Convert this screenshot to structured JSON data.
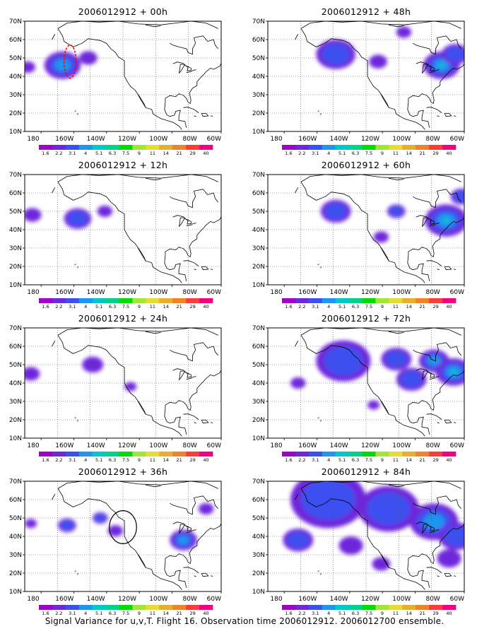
{
  "caption": "Signal Variance for u,v,T. Flight 16. Observation time 2006012912. 2006012700 ensemble.",
  "colorbar": {
    "labels": [
      "1.6",
      "2.2",
      "3.1",
      "4",
      "5.1",
      "6.3",
      "7.5",
      "9",
      "11",
      "14",
      "21",
      "29",
      "40"
    ],
    "colors": [
      "#a000c8",
      "#6e28dc",
      "#3c50f0",
      "#1e96f0",
      "#00c8c8",
      "#00d28c",
      "#00dc00",
      "#a0e632",
      "#e6dc32",
      "#e6af2d",
      "#f08228",
      "#fa3c3c",
      "#f00082"
    ]
  },
  "axes": {
    "xticks": [
      "180",
      "160W",
      "140W",
      "120W",
      "100W",
      "80W",
      "60W"
    ],
    "yticks": [
      "10N",
      "20N",
      "30N",
      "40N",
      "50N",
      "60N",
      "70N"
    ]
  },
  "chart_data": [
    {
      "type": "heatmap",
      "title": "2006012912 + 00h",
      "lon_range": [
        -190,
        -60
      ],
      "lat_range": [
        10,
        70
      ],
      "blobs": [
        {
          "lon": -165,
          "lat": 46,
          "r": 12,
          "level": 3
        },
        {
          "lon": -188,
          "lat": 45,
          "r": 5,
          "level": 1
        },
        {
          "lon": -148,
          "lat": 50,
          "r": 6,
          "level": 1
        }
      ],
      "overlays": [
        {
          "kind": "dashed-ellipse",
          "color": "#ff0000",
          "lon": -160,
          "lat": 48,
          "rx": 4,
          "ry": 9
        }
      ]
    },
    {
      "type": "heatmap",
      "title": "2006012912 + 48h",
      "lon_range": [
        -190,
        -60
      ],
      "lat_range": [
        10,
        70
      ],
      "blobs": [
        {
          "lon": -145,
          "lat": 52,
          "r": 13,
          "level": 2
        },
        {
          "lon": -117,
          "lat": 48,
          "r": 6,
          "level": 1
        },
        {
          "lon": -75,
          "lat": 46,
          "r": 12,
          "level": 4
        },
        {
          "lon": -66,
          "lat": 52,
          "r": 9,
          "level": 2
        },
        {
          "lon": -100,
          "lat": 64,
          "r": 5,
          "level": 1
        }
      ],
      "overlays": []
    },
    {
      "type": "heatmap",
      "title": "2006012912 + 12h",
      "lon_range": [
        -190,
        -60
      ],
      "lat_range": [
        10,
        70
      ],
      "blobs": [
        {
          "lon": -185,
          "lat": 48,
          "r": 6,
          "level": 1
        },
        {
          "lon": -155,
          "lat": 46,
          "r": 9,
          "level": 2
        },
        {
          "lon": -137,
          "lat": 50,
          "r": 5,
          "level": 1
        }
      ],
      "overlays": []
    },
    {
      "type": "heatmap",
      "title": "2006012912 + 60h",
      "lon_range": [
        -190,
        -60
      ],
      "lat_range": [
        10,
        70
      ],
      "blobs": [
        {
          "lon": -145,
          "lat": 50,
          "r": 10,
          "level": 2
        },
        {
          "lon": -105,
          "lat": 50,
          "r": 6,
          "level": 2
        },
        {
          "lon": -115,
          "lat": 36,
          "r": 5,
          "level": 1
        },
        {
          "lon": -72,
          "lat": 45,
          "r": 14,
          "level": 4
        },
        {
          "lon": -62,
          "lat": 58,
          "r": 7,
          "level": 2
        }
      ],
      "overlays": []
    },
    {
      "type": "heatmap",
      "title": "2006012912 + 24h",
      "lon_range": [
        -190,
        -60
      ],
      "lat_range": [
        10,
        70
      ],
      "blobs": [
        {
          "lon": -186,
          "lat": 45,
          "r": 6,
          "level": 1
        },
        {
          "lon": -145,
          "lat": 50,
          "r": 7,
          "level": 1
        },
        {
          "lon": -120,
          "lat": 38,
          "r": 4,
          "level": 1
        }
      ],
      "overlays": []
    },
    {
      "type": "heatmap",
      "title": "2006012912 + 72h",
      "lon_range": [
        -190,
        -60
      ],
      "lat_range": [
        10,
        70
      ],
      "blobs": [
        {
          "lon": -140,
          "lat": 52,
          "r": 18,
          "level": 2
        },
        {
          "lon": -105,
          "lat": 53,
          "r": 10,
          "level": 2
        },
        {
          "lon": -80,
          "lat": 52,
          "r": 10,
          "level": 3
        },
        {
          "lon": -67,
          "lat": 46,
          "r": 12,
          "level": 4
        },
        {
          "lon": -95,
          "lat": 42,
          "r": 10,
          "level": 2
        },
        {
          "lon": -170,
          "lat": 40,
          "r": 5,
          "level": 1
        },
        {
          "lon": -120,
          "lat": 28,
          "r": 4,
          "level": 1
        }
      ],
      "overlays": []
    },
    {
      "type": "heatmap",
      "title": "2006012912 + 36h",
      "lon_range": [
        -190,
        -60
      ],
      "lat_range": [
        10,
        70
      ],
      "blobs": [
        {
          "lon": -186,
          "lat": 47,
          "r": 4,
          "level": 1
        },
        {
          "lon": -162,
          "lat": 46,
          "r": 6,
          "level": 2
        },
        {
          "lon": -140,
          "lat": 50,
          "r": 5,
          "level": 2
        },
        {
          "lon": -130,
          "lat": 43,
          "r": 5,
          "level": 1
        },
        {
          "lon": -85,
          "lat": 38,
          "r": 9,
          "level": 3
        },
        {
          "lon": -70,
          "lat": 55,
          "r": 5,
          "level": 1
        }
      ],
      "overlays": [
        {
          "kind": "circle",
          "color": "#000000",
          "lon": -125,
          "lat": 45,
          "rx": 9,
          "ry": 9
        }
      ]
    },
    {
      "type": "heatmap",
      "title": "2006012912 + 84h",
      "lon_range": [
        -190,
        -60
      ],
      "lat_range": [
        10,
        70
      ],
      "blobs": [
        {
          "lon": -150,
          "lat": 60,
          "r": 25,
          "level": 2
        },
        {
          "lon": -110,
          "lat": 55,
          "r": 20,
          "level": 2
        },
        {
          "lon": -80,
          "lat": 48,
          "r": 16,
          "level": 3
        },
        {
          "lon": -65,
          "lat": 40,
          "r": 12,
          "level": 2
        },
        {
          "lon": -170,
          "lat": 38,
          "r": 10,
          "level": 2
        },
        {
          "lon": -135,
          "lat": 35,
          "r": 8,
          "level": 1
        },
        {
          "lon": -115,
          "lat": 25,
          "r": 6,
          "level": 1
        },
        {
          "lon": -70,
          "lat": 28,
          "r": 8,
          "level": 1
        }
      ],
      "overlays": []
    }
  ]
}
